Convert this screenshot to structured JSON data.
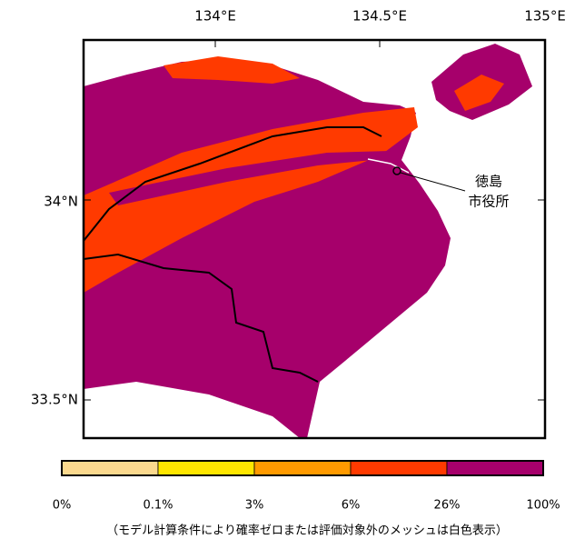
{
  "map": {
    "lon_labels": [
      "134°E",
      "134.5°E",
      "135°E"
    ],
    "lat_labels": [
      "34°N",
      "33.5°N"
    ],
    "city_label": [
      "徳島",
      "市役所"
    ]
  },
  "legend": {
    "colors": [
      "#fbd98e",
      "#ffe600",
      "#ff9a00",
      "#ff3a00",
      "#a6006b"
    ],
    "labels": [
      "0%",
      "0.1%",
      "3%",
      "6%",
      "26%",
      "100%"
    ]
  },
  "note": "（モデル計算条件により確率ゼロまたは評価対象外のメッシュは白色表示）"
}
